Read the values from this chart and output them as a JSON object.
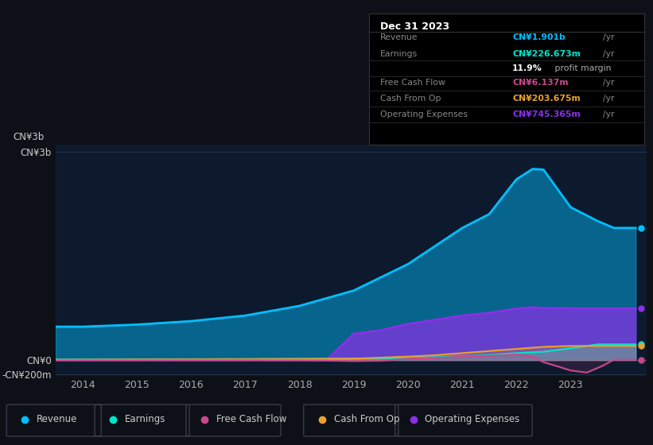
{
  "background_color": "#0d1117",
  "chart_bg": "#0d1a2e",
  "revenue_color": "#00bfff",
  "earnings_color": "#00e5cc",
  "free_cash_flow_color": "#c8488a",
  "cash_from_op_color": "#e8a030",
  "operating_expenses_color": "#8b30e8",
  "legend_labels": [
    "Revenue",
    "Earnings",
    "Free Cash Flow",
    "Cash From Op",
    "Operating Expenses"
  ],
  "legend_colors": [
    "#00bfff",
    "#00e5cc",
    "#c8488a",
    "#e8a030",
    "#8b30e8"
  ],
  "rev_x": [
    2013.5,
    2014,
    2015,
    2016,
    2017,
    2018,
    2019,
    2020,
    2021,
    2021.5,
    2022,
    2022.3,
    2022.5,
    2023,
    2023.5,
    2023.8,
    2024.2
  ],
  "rev_y": [
    480,
    480,
    510,
    560,
    640,
    780,
    1000,
    1380,
    1900,
    2100,
    2600,
    2750,
    2740,
    2200,
    2000,
    1901,
    1901
  ],
  "earn_x": [
    2013.5,
    2014,
    2015,
    2016,
    2017,
    2018,
    2019,
    2019.5,
    2020,
    2020.5,
    2021,
    2021.5,
    2022,
    2022.5,
    2023,
    2023.5,
    2024.2
  ],
  "earn_y": [
    8,
    8,
    10,
    12,
    15,
    18,
    20,
    22,
    30,
    40,
    55,
    70,
    100,
    120,
    170,
    226,
    226
  ],
  "fcf_x": [
    2013.5,
    2014,
    2015,
    2016,
    2017,
    2018,
    2018.5,
    2019,
    2019.5,
    2020,
    2020.5,
    2021,
    2021.2,
    2021.5,
    2022,
    2022.3,
    2022.5,
    2022.8,
    2023,
    2023.3,
    2023.6,
    2023.8,
    2024.2
  ],
  "fcf_y": [
    -5,
    -3,
    -3,
    -2,
    -2,
    -5,
    -8,
    -15,
    -10,
    20,
    30,
    50,
    55,
    60,
    80,
    50,
    -30,
    -100,
    -150,
    -180,
    -80,
    6,
    6
  ],
  "cop_x": [
    2013.5,
    2014,
    2015,
    2016,
    2017,
    2018,
    2019,
    2020,
    2020.5,
    2021,
    2021.5,
    2022,
    2022.5,
    2023,
    2023.5,
    2024.2
  ],
  "cop_y": [
    5,
    5,
    8,
    10,
    12,
    15,
    20,
    50,
    70,
    100,
    130,
    160,
    190,
    203,
    203,
    203
  ],
  "opex_x": [
    2013.5,
    2014,
    2015,
    2016,
    2017,
    2018,
    2018.5,
    2019,
    2019.5,
    2020,
    2020.5,
    2021,
    2021.5,
    2022,
    2022.3,
    2022.5,
    2023,
    2023.5,
    2024.2
  ],
  "opex_y": [
    0,
    0,
    0,
    0,
    0,
    0,
    0,
    380,
    430,
    520,
    580,
    640,
    680,
    740,
    760,
    750,
    745,
    745,
    745
  ],
  "ylim_min": -230,
  "ylim_max": 3100,
  "xlim_min": 2013.5,
  "xlim_max": 2024.4,
  "xtick_vals": [
    2014,
    2015,
    2016,
    2017,
    2018,
    2019,
    2020,
    2021,
    2022,
    2023
  ],
  "ytick_vals": [
    -200,
    0,
    3000
  ],
  "ytick_labels": [
    "-CN¥200m",
    "CN¥0",
    "CN¥3b"
  ],
  "ytick_label_3b": "CN¥3b",
  "ytick_label_0": "CN¥0",
  "ytick_label_200m": "-CN¥200m",
  "info_title": "Dec 31 2023",
  "info_rows": [
    {
      "label": "Revenue",
      "value": "CN¥1.901b",
      "unit": "/yr",
      "color": "#00bfff"
    },
    {
      "label": "Earnings",
      "value": "CN¥226.673m",
      "unit": "/yr",
      "color": "#00e5cc"
    },
    {
      "label": "",
      "value": "11.9%",
      "unit": " profit margin",
      "color": "white"
    },
    {
      "label": "Free Cash Flow",
      "value": "CN¥6.137m",
      "unit": "/yr",
      "color": "#c8488a"
    },
    {
      "label": "Cash From Op",
      "value": "CN¥203.675m",
      "unit": "/yr",
      "color": "#e8a030"
    },
    {
      "label": "Operating Expenses",
      "value": "CN¥745.365m",
      "unit": "/yr",
      "color": "#8b30e8"
    }
  ]
}
